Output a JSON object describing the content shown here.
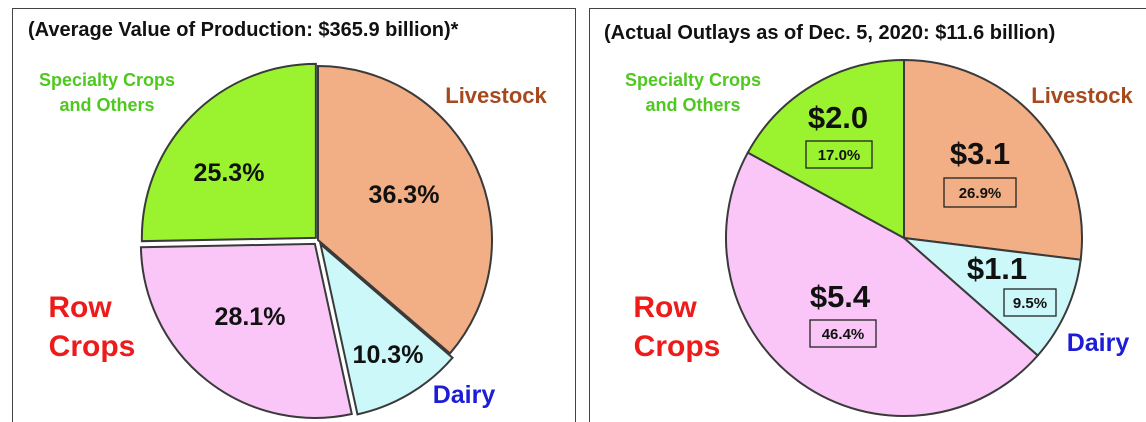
{
  "chart_data": [
    {
      "type": "pie",
      "title": "(Average Value of Production: $365.9 billion)*",
      "slices": [
        {
          "label": "Livestock",
          "value": 36.3,
          "pct_label": "36.3%",
          "color": "#f2ae84"
        },
        {
          "label": "Dairy",
          "value": 10.3,
          "pct_label": "10.3%",
          "color": "#ccf8fa"
        },
        {
          "label": "Row Crops",
          "value": 28.1,
          "pct_label": "28.1%",
          "color": "#f9c6f7"
        },
        {
          "label": "Specialty Crops and Others",
          "value": 25.3,
          "pct_label": "25.3%",
          "color": "#9af32e"
        }
      ]
    },
    {
      "type": "pie",
      "title": "(Actual Outlays as of Dec. 5, 2020: $11.6 billion)",
      "slices": [
        {
          "label": "Livestock",
          "value": 26.9,
          "amount_label": "$3.1",
          "pct_label": "26.9%",
          "color": "#f2ae84"
        },
        {
          "label": "Dairy",
          "value": 9.5,
          "amount_label": "$1.1",
          "pct_label": "9.5%",
          "color": "#ccf8fa"
        },
        {
          "label": "Row Crops",
          "value": 46.4,
          "amount_label": "$5.4",
          "pct_label": "46.4%",
          "color": "#f9c6f7"
        },
        {
          "label": "Specialty Crops and Others",
          "value": 17.0,
          "amount_label": "$2.0",
          "pct_label": "17.0%",
          "color": "#9af32e"
        }
      ]
    }
  ],
  "category_labels": {
    "specialty_line1": "Specialty Crops",
    "specialty_line2": "and Others",
    "livestock": "Livestock",
    "row_line1": "Row",
    "row_line2": "Crops",
    "dairy": "Dairy"
  }
}
